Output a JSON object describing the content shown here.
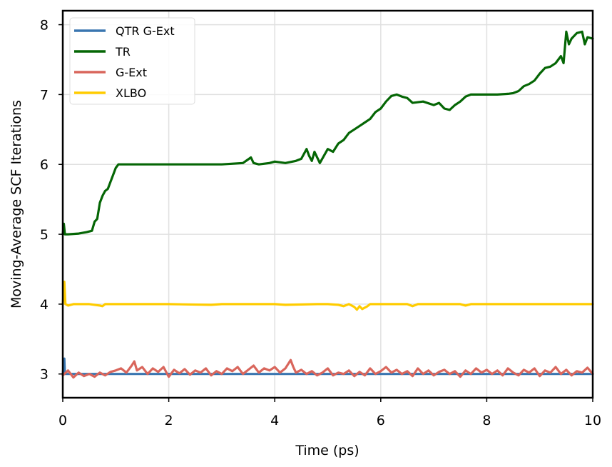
{
  "chart_data": {
    "type": "line",
    "title": "",
    "xlabel": "Time (ps)",
    "ylabel": "Moving-Average SCF Iterations",
    "xlim": [
      0,
      10
    ],
    "ylim": [
      2.66,
      8.2
    ],
    "xticks": [
      0,
      2,
      4,
      6,
      8,
      10
    ],
    "yticks": [
      3,
      4,
      5,
      6,
      7,
      8
    ],
    "grid": true,
    "legend_position": "upper left",
    "series": [
      {
        "name": "QTR G-Ext",
        "color": "#3a76b0",
        "x": [
          0,
          0.03,
          0.04,
          0.06,
          1,
          2,
          3,
          4,
          5,
          6,
          7,
          8,
          9,
          10
        ],
        "y": [
          3.0,
          3.22,
          3.0,
          3.0,
          3.0,
          3.0,
          3.0,
          3.0,
          3.0,
          3.0,
          3.0,
          3.0,
          3.0,
          3.0
        ]
      },
      {
        "name": "TR",
        "color": "#056605",
        "x": [
          0,
          0.02,
          0.04,
          0.1,
          0.3,
          0.45,
          0.55,
          0.6,
          0.65,
          0.7,
          0.75,
          0.8,
          0.85,
          0.9,
          0.95,
          1.0,
          1.05,
          1.1,
          2,
          3,
          3.4,
          3.55,
          3.6,
          3.7,
          3.9,
          4.0,
          4.2,
          4.4,
          4.5,
          4.6,
          4.65,
          4.7,
          4.75,
          4.85,
          5.0,
          5.1,
          5.2,
          5.3,
          5.4,
          5.5,
          5.6,
          5.7,
          5.8,
          5.9,
          6.0,
          6.05,
          6.1,
          6.2,
          6.3,
          6.4,
          6.5,
          6.6,
          6.8,
          7.0,
          7.1,
          7.2,
          7.3,
          7.4,
          7.5,
          7.6,
          7.7,
          8.0,
          8.2,
          8.4,
          8.5,
          8.6,
          8.7,
          8.8,
          8.9,
          9.0,
          9.1,
          9.2,
          9.3,
          9.35,
          9.4,
          9.45,
          9.5,
          9.55,
          9.6,
          9.7,
          9.8,
          9.85,
          9.9,
          10.0
        ],
        "y": [
          5.0,
          5.15,
          5.0,
          5.0,
          5.01,
          5.03,
          5.05,
          5.18,
          5.22,
          5.45,
          5.55,
          5.62,
          5.65,
          5.75,
          5.85,
          5.95,
          6.0,
          6.0,
          6.0,
          6.0,
          6.02,
          6.1,
          6.02,
          6.0,
          6.02,
          6.04,
          6.02,
          6.05,
          6.08,
          6.22,
          6.12,
          6.05,
          6.18,
          6.02,
          6.22,
          6.18,
          6.3,
          6.35,
          6.45,
          6.5,
          6.55,
          6.6,
          6.65,
          6.75,
          6.8,
          6.85,
          6.9,
          6.98,
          7.0,
          6.97,
          6.95,
          6.88,
          6.9,
          6.85,
          6.88,
          6.8,
          6.78,
          6.85,
          6.9,
          6.97,
          7.0,
          7.0,
          7.0,
          7.01,
          7.02,
          7.05,
          7.12,
          7.15,
          7.2,
          7.3,
          7.38,
          7.4,
          7.45,
          7.5,
          7.55,
          7.45,
          7.9,
          7.72,
          7.8,
          7.88,
          7.9,
          7.72,
          7.82,
          7.8
        ]
      },
      {
        "name": "G-Ext",
        "color": "#d9665c",
        "x": [
          0,
          0.1,
          0.2,
          0.3,
          0.4,
          0.5,
          0.6,
          0.7,
          0.8,
          0.9,
          1.0,
          1.1,
          1.2,
          1.3,
          1.35,
          1.4,
          1.5,
          1.6,
          1.7,
          1.8,
          1.9,
          2.0,
          2.1,
          2.2,
          2.3,
          2.4,
          2.5,
          2.6,
          2.7,
          2.8,
          2.9,
          3.0,
          3.1,
          3.2,
          3.3,
          3.4,
          3.5,
          3.6,
          3.7,
          3.8,
          3.9,
          4.0,
          4.1,
          4.2,
          4.3,
          4.35,
          4.4,
          4.5,
          4.6,
          4.7,
          4.8,
          4.9,
          5.0,
          5.1,
          5.2,
          5.3,
          5.4,
          5.5,
          5.6,
          5.7,
          5.8,
          5.9,
          6.0,
          6.1,
          6.2,
          6.3,
          6.4,
          6.5,
          6.6,
          6.7,
          6.8,
          6.9,
          7.0,
          7.1,
          7.2,
          7.3,
          7.4,
          7.5,
          7.6,
          7.7,
          7.8,
          7.9,
          8.0,
          8.1,
          8.2,
          8.3,
          8.4,
          8.5,
          8.6,
          8.7,
          8.8,
          8.9,
          9.0,
          9.1,
          9.2,
          9.3,
          9.4,
          9.5,
          9.6,
          9.7,
          9.8,
          9.9,
          10.0
        ],
        "y": [
          2.98,
          3.05,
          2.95,
          3.02,
          2.97,
          3.0,
          2.96,
          3.02,
          2.98,
          3.03,
          3.05,
          3.08,
          3.02,
          3.12,
          3.18,
          3.05,
          3.1,
          3.0,
          3.08,
          3.03,
          3.1,
          2.96,
          3.06,
          3.01,
          3.07,
          2.99,
          3.05,
          3.02,
          3.08,
          2.98,
          3.04,
          3.0,
          3.08,
          3.04,
          3.1,
          3.0,
          3.06,
          3.12,
          3.02,
          3.08,
          3.05,
          3.1,
          3.02,
          3.08,
          3.2,
          3.1,
          3.02,
          3.06,
          3.0,
          3.04,
          2.98,
          3.02,
          3.08,
          2.98,
          3.02,
          3.0,
          3.05,
          2.97,
          3.03,
          2.98,
          3.08,
          3.0,
          3.04,
          3.1,
          3.02,
          3.06,
          3.0,
          3.04,
          2.97,
          3.08,
          3.0,
          3.05,
          2.98,
          3.03,
          3.06,
          3.0,
          3.04,
          2.96,
          3.05,
          3.0,
          3.08,
          3.02,
          3.06,
          3.0,
          3.05,
          2.98,
          3.08,
          3.02,
          2.98,
          3.06,
          3.02,
          3.08,
          2.97,
          3.05,
          3.02,
          3.1,
          3.0,
          3.06,
          2.98,
          3.04,
          3.02,
          3.09,
          3.0
        ]
      },
      {
        "name": "XLBO",
        "color": "#ffcc00",
        "x": [
          0,
          0.03,
          0.05,
          0.1,
          0.2,
          0.3,
          0.5,
          0.7,
          0.75,
          0.8,
          1.0,
          2.0,
          2.8,
          3.0,
          3.5,
          4.0,
          4.2,
          4.8,
          5.0,
          5.2,
          5.3,
          5.4,
          5.5,
          5.55,
          5.6,
          5.65,
          5.7,
          5.75,
          5.8,
          5.9,
          6.0,
          6.5,
          6.6,
          6.7,
          7.0,
          7.5,
          7.6,
          7.7,
          8.0,
          9.0,
          10.0
        ],
        "y": [
          4.0,
          4.32,
          4.0,
          3.98,
          4.0,
          4.0,
          4.0,
          3.98,
          3.97,
          4.0,
          4.0,
          4.0,
          3.99,
          4.0,
          4.0,
          4.0,
          3.99,
          4.0,
          4.0,
          3.99,
          3.97,
          4.0,
          3.96,
          3.92,
          3.97,
          3.93,
          3.95,
          3.97,
          4.0,
          4.0,
          4.0,
          4.0,
          3.97,
          4.0,
          4.0,
          4.0,
          3.98,
          4.0,
          4.0,
          4.0,
          4.0
        ]
      }
    ]
  }
}
